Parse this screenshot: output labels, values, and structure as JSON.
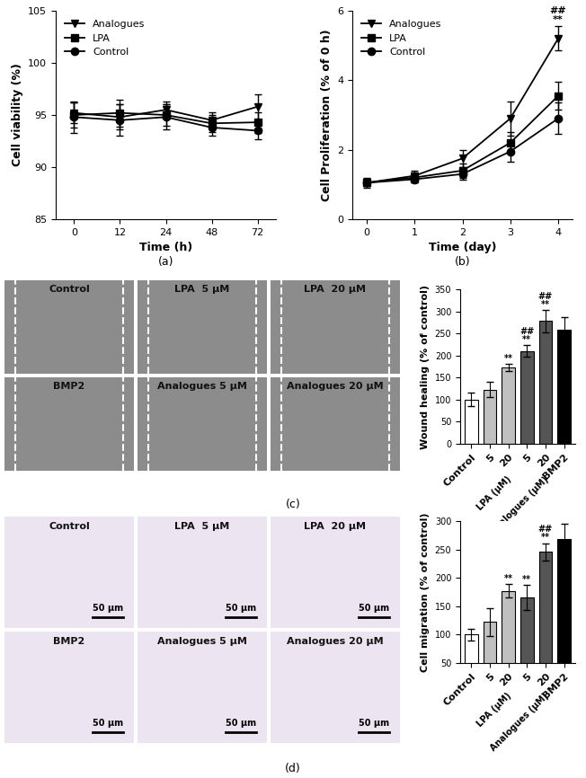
{
  "chart_data": [
    {
      "type": "line",
      "caption": "(a)",
      "x_label": "Time (h)",
      "y_label": "Cell viability (%)",
      "categories": [
        "0",
        "12",
        "24",
        "48",
        "72"
      ],
      "ylim": [
        85,
        105
      ],
      "yticks": [
        85,
        90,
        95,
        100,
        105
      ],
      "legend": "upper left",
      "series": [
        {
          "name": "Analogues",
          "color": "#000000",
          "marker": "triangle_down",
          "values": [
            95.2,
            94.8,
            95.5,
            94.5,
            95.8
          ],
          "errors": [
            1.0,
            1.2,
            0.8,
            0.8,
            1.2
          ]
        },
        {
          "name": "LPA",
          "color": "#000000",
          "marker": "square",
          "values": [
            95.0,
            95.2,
            95.0,
            94.2,
            94.3
          ],
          "errors": [
            1.2,
            1.3,
            1.0,
            0.8,
            1.0
          ]
        },
        {
          "name": "Control",
          "color": "#000000",
          "marker": "circle",
          "values": [
            94.8,
            94.5,
            94.8,
            93.8,
            93.5
          ],
          "errors": [
            1.5,
            1.5,
            1.2,
            0.8,
            0.8
          ]
        }
      ]
    },
    {
      "type": "line",
      "caption": "(b)",
      "x_label": "Time (day)",
      "y_label": "Cell Proliferation (% of 0 h)",
      "x": [
        0,
        1,
        2,
        3,
        4
      ],
      "xlim": [
        -0.3,
        4.3
      ],
      "xticks": [
        0,
        1,
        2,
        3,
        4
      ],
      "ylim": [
        0,
        6
      ],
      "yticks": [
        0,
        2,
        4,
        6
      ],
      "legend": "upper left",
      "series": [
        {
          "name": "Analogues",
          "color": "#000000",
          "marker": "triangle_down",
          "values": [
            1.05,
            1.25,
            1.75,
            2.9,
            5.2
          ],
          "errors": [
            0.15,
            0.15,
            0.25,
            0.5,
            0.35
          ]
        },
        {
          "name": "LPA",
          "color": "#000000",
          "marker": "square",
          "values": [
            1.05,
            1.2,
            1.4,
            2.2,
            3.55
          ],
          "errors": [
            0.1,
            0.15,
            0.2,
            0.3,
            0.4
          ]
        },
        {
          "name": "Control",
          "color": "#000000",
          "marker": "circle",
          "values": [
            1.05,
            1.15,
            1.3,
            1.95,
            2.9
          ],
          "errors": [
            0.1,
            0.1,
            0.15,
            0.3,
            0.45
          ]
        }
      ],
      "annotations": [
        {
          "x": 4,
          "series": "Analogues",
          "texts": [
            "##",
            "**"
          ]
        }
      ]
    },
    {
      "type": "bar",
      "caption": "(c)",
      "y_label": "Wound healing (% of control)",
      "categories": [
        "Control",
        "5",
        "20",
        "5",
        "20",
        "BMP2"
      ],
      "groups": [
        {
          "label": "LPA (μM)",
          "indices": [
            1,
            2
          ]
        },
        {
          "label": "Analogues (μM)",
          "indices": [
            3,
            4
          ]
        }
      ],
      "values": [
        100,
        123,
        173,
        210,
        278,
        258
      ],
      "errors": [
        15,
        18,
        8,
        13,
        25,
        28
      ],
      "colors": [
        "#ffffff",
        "#c0c0c0",
        "#c0c0c0",
        "#555555",
        "#555555",
        "#000000"
      ],
      "annotations": [
        null,
        null,
        [
          "**"
        ],
        [
          "##",
          "**"
        ],
        [
          "##",
          "**"
        ],
        null
      ],
      "ylim": [
        0,
        350
      ],
      "yticks": [
        0,
        50,
        100,
        150,
        200,
        250,
        300,
        350
      ]
    },
    {
      "type": "bar",
      "caption": "(d)",
      "y_label": "Cell migration (% of control)",
      "categories": [
        "Control",
        "5",
        "20",
        "5",
        "20",
        "BMP2"
      ],
      "groups": [
        {
          "label": "LPA (μM)",
          "indices": [
            1,
            2
          ]
        },
        {
          "label": "Analogues (μM)",
          "indices": [
            3,
            4
          ]
        }
      ],
      "values": [
        100,
        122,
        177,
        165,
        246,
        268
      ],
      "errors": [
        10,
        24,
        12,
        22,
        15,
        28
      ],
      "colors": [
        "#ffffff",
        "#c0c0c0",
        "#c0c0c0",
        "#555555",
        "#555555",
        "#000000"
      ],
      "annotations": [
        null,
        null,
        [
          "**"
        ],
        [
          "**"
        ],
        [
          "##",
          "**"
        ],
        null
      ],
      "ylim": [
        50,
        300
      ],
      "yticks": [
        50,
        100,
        150,
        200,
        250,
        300
      ]
    }
  ],
  "micrograph_grids": [
    {
      "labels": [
        "Control",
        "LPA  5 μM",
        "LPA  20 μM",
        "BMP2",
        "Analogues 5 μM",
        "Analogues 20 μM"
      ]
    },
    {
      "labels": [
        "Control",
        "LPA  5 μM",
        "LPA  20 μM",
        "BMP2",
        "Analogues 5 μM",
        "Analogues 20 μM"
      ],
      "scale_bar": "50 μm"
    }
  ]
}
